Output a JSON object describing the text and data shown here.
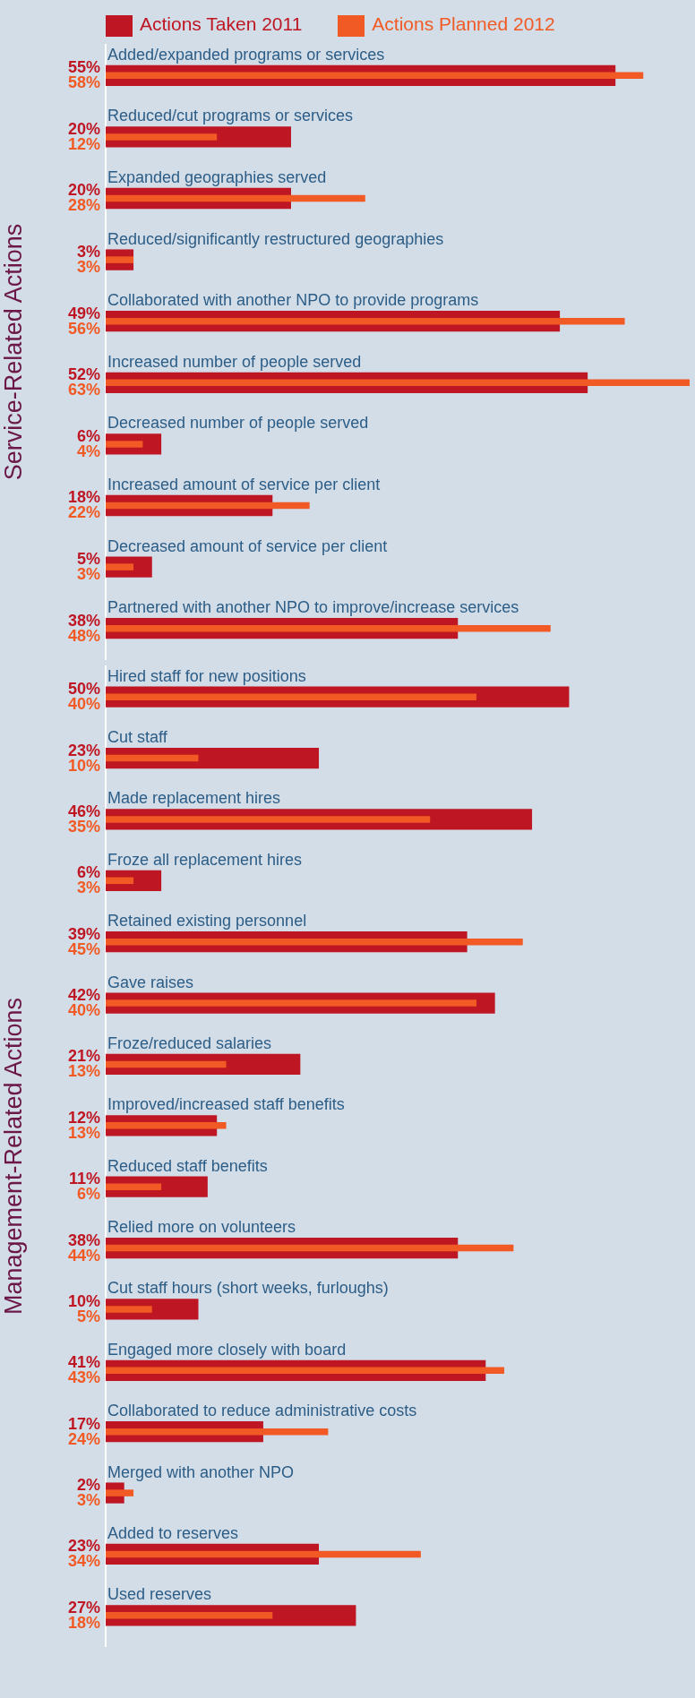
{
  "chart_data": [
    {
      "type": "bar",
      "orientation": "horizontal",
      "ylabel": "Service-Related Actions",
      "legend": "top",
      "categories": [
        "Added/expanded programs or services",
        "Reduced/cut programs or services",
        "Expanded geographies served",
        "Reduced/significantly restructured geographies",
        "Collaborated with another NPO to provide programs",
        "Increased number of people served",
        "Decreased number of people served",
        "Increased amount of service per client",
        "Decreased amount of service per client",
        "Partnered with another NPO to improve/increase services"
      ],
      "series": [
        {
          "name": "Actions Taken 2011",
          "color": "#be1622",
          "values": [
            55,
            20,
            20,
            3,
            49,
            52,
            6,
            18,
            5,
            38
          ],
          "value_labels": [
            "55%",
            "20%",
            "20%",
            "3%",
            "49%",
            "52%",
            "6%",
            "18%",
            "5%",
            "38%"
          ]
        },
        {
          "name": "Actions Planned 2012",
          "color": "#f15a24",
          "values": [
            58,
            12,
            28,
            3,
            56,
            63,
            4,
            22,
            3,
            48
          ],
          "value_labels": [
            "58%",
            "12%",
            "28%",
            "3%",
            "56%",
            "63%",
            "4%",
            "22%",
            "3%",
            "48%"
          ]
        }
      ]
    },
    {
      "type": "bar",
      "orientation": "horizontal",
      "ylabel": "Management-Related Actions",
      "legend": false,
      "categories": [
        "Hired staff for new positions",
        "Cut staff",
        "Made replacement hires",
        "Froze all replacement hires",
        "Retained existing personnel",
        "Gave raises",
        "Froze/reduced salaries",
        "Improved/increased staff benefits",
        "Reduced staff benefits",
        "Relied more on volunteers",
        "Cut staff hours (short weeks, furloughs)",
        "Engaged more closely with board",
        "Collaborated to reduce administrative costs",
        "Merged with another NPO",
        "Added to reserves",
        "Used reserves"
      ],
      "series": [
        {
          "color": "#be1622",
          "values": [
            50,
            23,
            46,
            6,
            39,
            42,
            21,
            12,
            11,
            38,
            10,
            41,
            17,
            2,
            23,
            27
          ],
          "value_labels": [
            "50%",
            "23%",
            "46%",
            "6%",
            "39%",
            "42%",
            "21%",
            "12%",
            "11%",
            "38%",
            "10%",
            "41%",
            "17%",
            "2%",
            "23%",
            "27%"
          ]
        },
        {
          "color": "#f15a24",
          "values": [
            40,
            10,
            35,
            3,
            45,
            40,
            13,
            13,
            6,
            44,
            5,
            43,
            24,
            3,
            34,
            18
          ],
          "value_labels": [
            "40%",
            "10%",
            "35%",
            "3%",
            "45%",
            "40%",
            "13%",
            "13%",
            "6%",
            "44%",
            "5%",
            "43%",
            "24%",
            "3%",
            "34%",
            "18%"
          ]
        }
      ]
    }
  ]
}
